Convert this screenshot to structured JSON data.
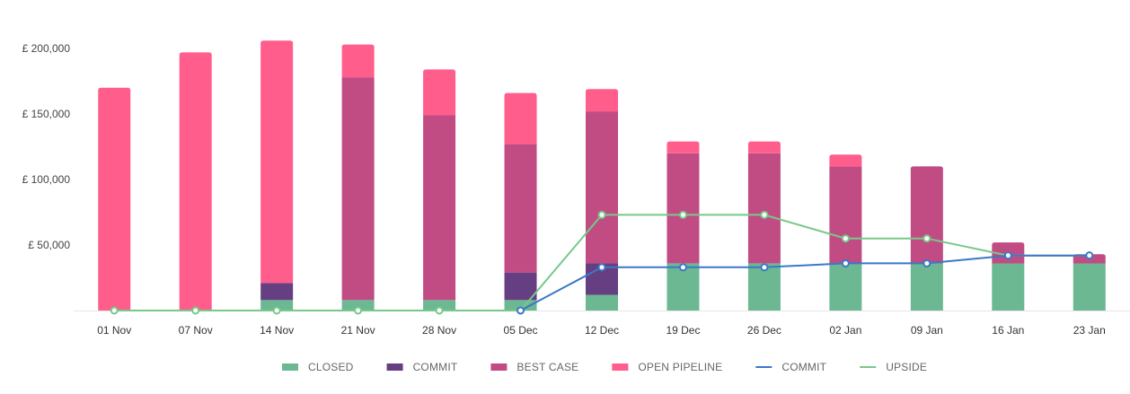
{
  "chart_data": {
    "type": "bar",
    "stacked": true,
    "categories": [
      "01 Nov",
      "07 Nov",
      "14 Nov",
      "21 Nov",
      "28 Nov",
      "05 Dec",
      "12 Dec",
      "19 Dec",
      "26 Dec",
      "02 Jan",
      "09 Jan",
      "16 Jan",
      "23 Jan"
    ],
    "ylim": [
      0,
      200000
    ],
    "yticks": [
      {
        "value": 50000,
        "label": "£ 50,000"
      },
      {
        "value": 100000,
        "label": "£ 100,000"
      },
      {
        "value": 150000,
        "label": "£ 150,000"
      },
      {
        "value": 200000,
        "label": "£ 200,000"
      }
    ],
    "grid": false,
    "legend_position": "bottom",
    "bar_series": [
      {
        "name": "CLOSED",
        "color": "#6bb893",
        "values": [
          0,
          0,
          8000,
          8000,
          8000,
          8000,
          12000,
          36000,
          36000,
          36000,
          36000,
          36000,
          36000
        ]
      },
      {
        "name": "COMMIT",
        "color": "#653f82",
        "values": [
          0,
          0,
          13000,
          0,
          0,
          21000,
          24000,
          0,
          0,
          0,
          0,
          0,
          0
        ]
      },
      {
        "name": "BEST CASE",
        "color": "#c14c84",
        "values": [
          0,
          0,
          0,
          170000,
          141000,
          98000,
          116000,
          84000,
          84000,
          74000,
          74000,
          16000,
          7000
        ]
      },
      {
        "name": "OPEN PIPELINE",
        "color": "#ff5e8c",
        "values": [
          170000,
          197000,
          185000,
          25000,
          35000,
          39000,
          17000,
          9000,
          9000,
          9000,
          0,
          0,
          0
        ]
      }
    ],
    "line_series": [
      {
        "name": "COMMIT",
        "color": "#3b78c6",
        "values": [
          null,
          null,
          null,
          null,
          null,
          0,
          33000,
          33000,
          33000,
          36000,
          36000,
          42000,
          42000
        ]
      },
      {
        "name": "UPSIDE",
        "color": "#78c889",
        "values": [
          0,
          0,
          0,
          0,
          0,
          0,
          73000,
          73000,
          73000,
          55000,
          55000,
          42000,
          42000
        ]
      }
    ]
  }
}
